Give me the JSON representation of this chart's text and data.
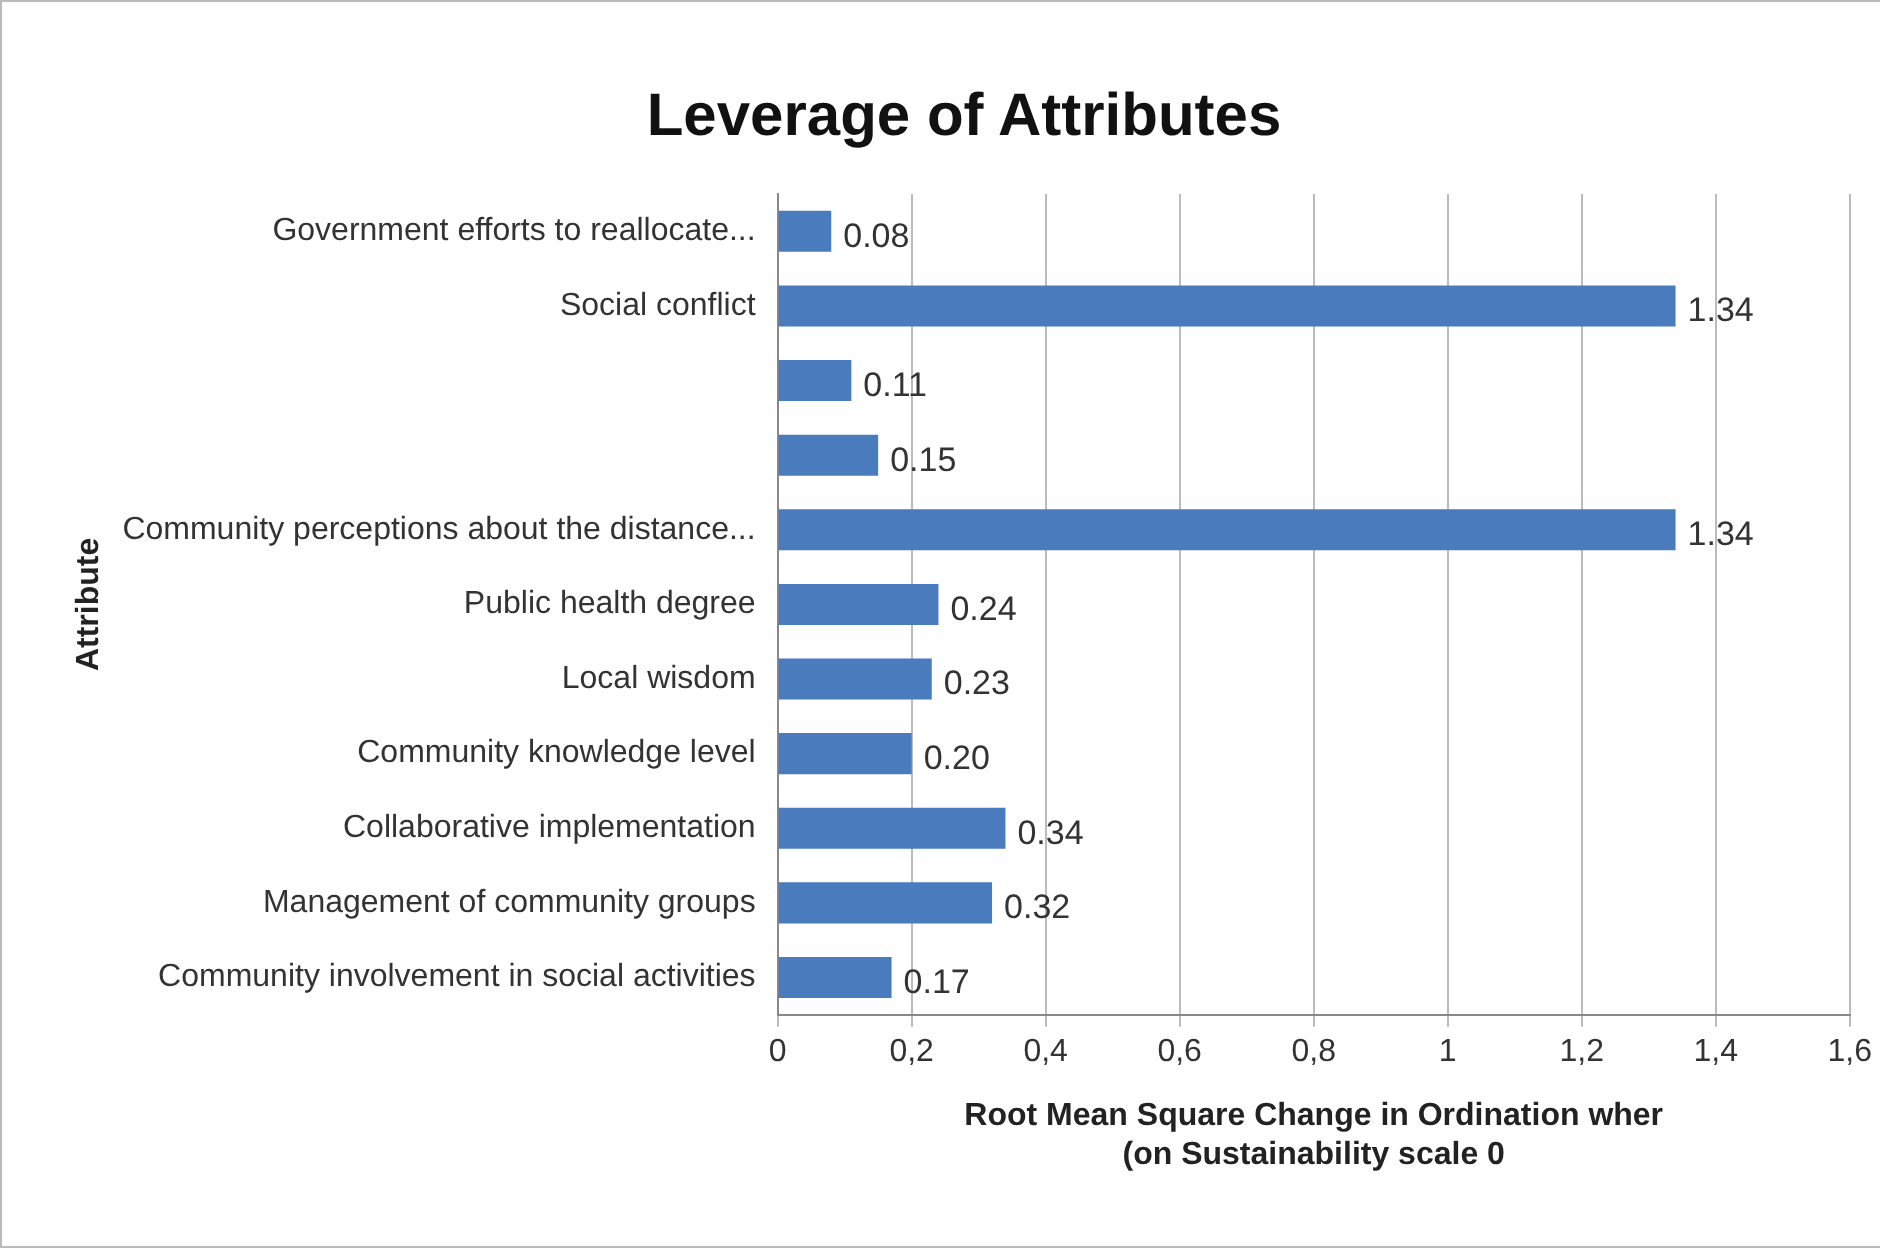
{
  "chart_data": {
    "type": "bar",
    "orientation": "horizontal",
    "title": "Leverage of Attributes",
    "ylabel": "Attribute",
    "xlabel": "Root Mean Square Change in Ordination wher\n(on Sustainability scale 0",
    "categories": [
      "Government efforts to reallocate...",
      "Social conflict",
      null,
      null,
      "Community perceptions about the distance...",
      "Public health degree",
      "Local wisdom",
      "Community knowledge level",
      "Collaborative implementation",
      "Management of community groups",
      "Community involvement in social activities"
    ],
    "values": [
      0.08,
      1.34,
      0.11,
      0.15,
      1.34,
      0.24,
      0.23,
      0.2,
      0.34,
      0.32,
      0.17
    ],
    "value_labels": [
      "0.08",
      "1.34",
      "0.11",
      "0.15",
      "1.34",
      "0.24",
      "0.23",
      "0.20",
      "0.34",
      "0.32",
      "0.17"
    ],
    "color": "#4a7bbd",
    "xlim": [
      0,
      1.6
    ],
    "xticks": [
      0,
      {
        "value": 0.2,
        "label": "0,2"
      },
      {
        "value": 0.4,
        "label": "0,4"
      },
      {
        "value": 0.6,
        "label": "0,6"
      },
      {
        "value": 0.8,
        "label": "0,8"
      },
      1,
      {
        "value": 1.2,
        "label": "1,2"
      },
      {
        "value": 1.4,
        "label": "1,4"
      },
      {
        "value": 1.6,
        "label": "1,6"
      }
    ],
    "grid": "x"
  }
}
